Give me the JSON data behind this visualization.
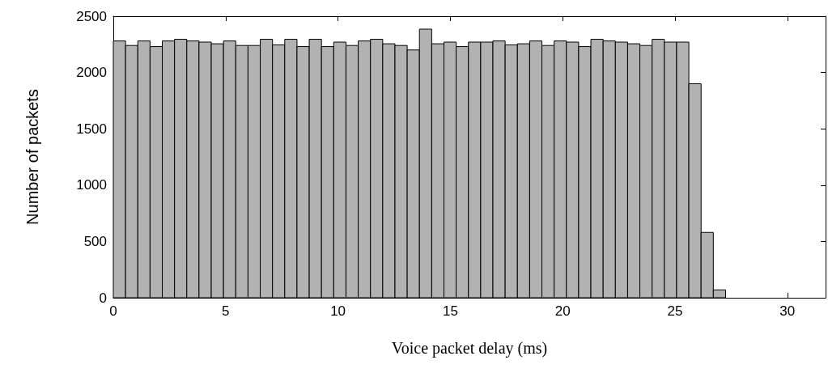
{
  "chart_data": {
    "type": "histogram",
    "xlabel": "Voice packet delay (ms)",
    "ylabel": "Number of packets",
    "bins": [
      0,
      0.545,
      1.09,
      1.635,
      2.18,
      2.725,
      3.27,
      3.815,
      4.36,
      4.905,
      5.45,
      5.995,
      6.54,
      7.085,
      7.63,
      8.175,
      8.72,
      9.265,
      9.81,
      10.355,
      10.9,
      11.445,
      11.99,
      12.535,
      13.08,
      13.625,
      14.17,
      14.715,
      15.26,
      15.805,
      16.35,
      16.895,
      17.44,
      17.985,
      18.53,
      19.075,
      19.62,
      20.165,
      20.71,
      21.255,
      21.8,
      22.345,
      22.89,
      23.435,
      23.98,
      24.525,
      25.07,
      25.615,
      26.16,
      26.705,
      27.25
    ],
    "values": [
      2280,
      2240,
      2280,
      2230,
      2280,
      2295,
      2280,
      2270,
      2255,
      2280,
      2240,
      2240,
      2295,
      2245,
      2295,
      2230,
      2295,
      2230,
      2270,
      2240,
      2280,
      2295,
      2255,
      2240,
      2200,
      2385,
      2255,
      2270,
      2230,
      2270,
      2270,
      2280,
      2245,
      2255,
      2280,
      2240,
      2280,
      2270,
      2230,
      2295,
      2280,
      2270,
      2255,
      2240,
      2295,
      2270,
      2270,
      1900,
      580,
      70
    ],
    "color": "#b2b2b2",
    "xlim": [
      0,
      31.7
    ],
    "xticks": [
      0,
      5,
      10,
      15,
      20,
      25,
      30
    ],
    "ylim": [
      0,
      2500
    ],
    "yticks": [
      0,
      500,
      1000,
      1500,
      2000,
      2500
    ],
    "grid": false
  }
}
